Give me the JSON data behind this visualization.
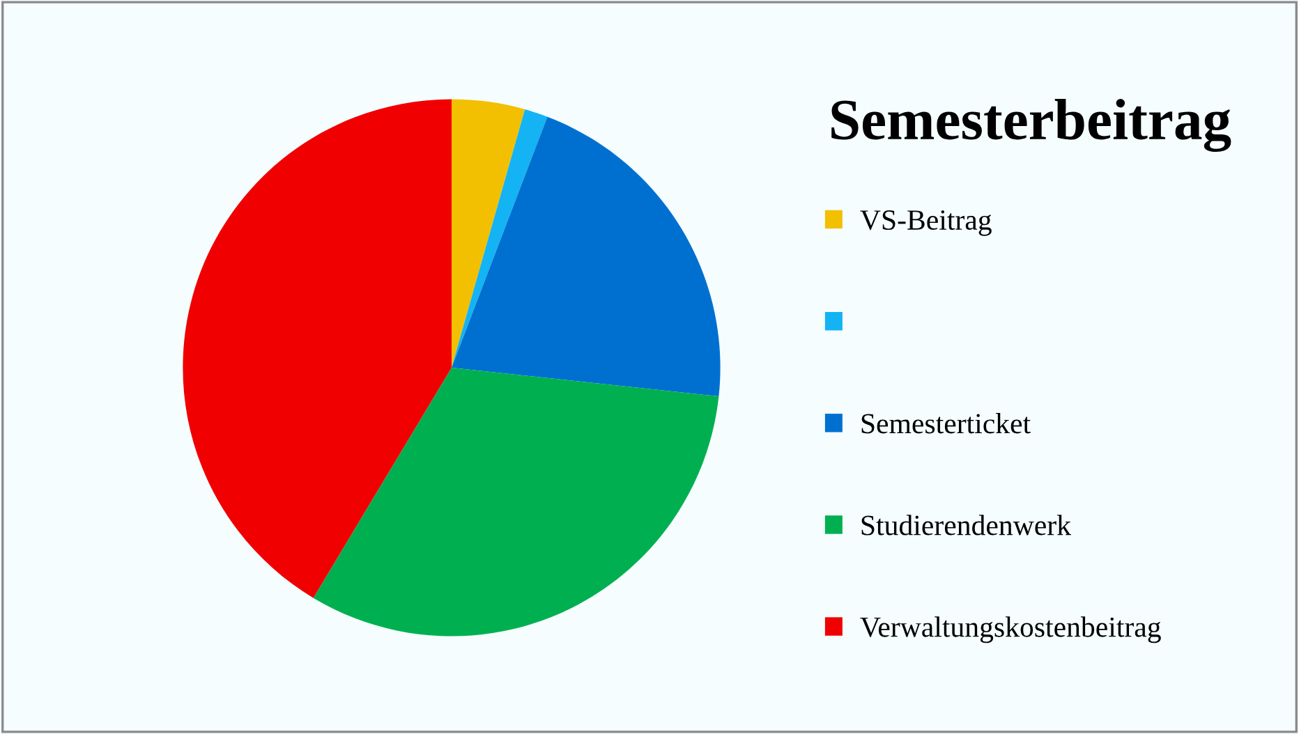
{
  "chart_data": {
    "type": "pie",
    "title": "Semesterbeitrag",
    "categories": [
      "VS-Beitrag",
      null,
      "Semesterticket",
      "Studierendenwerk",
      "Verwaltungskostenbeitrag"
    ],
    "values": [
      4.4,
      1.4,
      20.9,
      31.9,
      41.4
    ],
    "colors": [
      "#f2c000",
      "#13b3f4",
      "#0070d0",
      "#00b050",
      "#f00000"
    ],
    "legend": "right"
  }
}
